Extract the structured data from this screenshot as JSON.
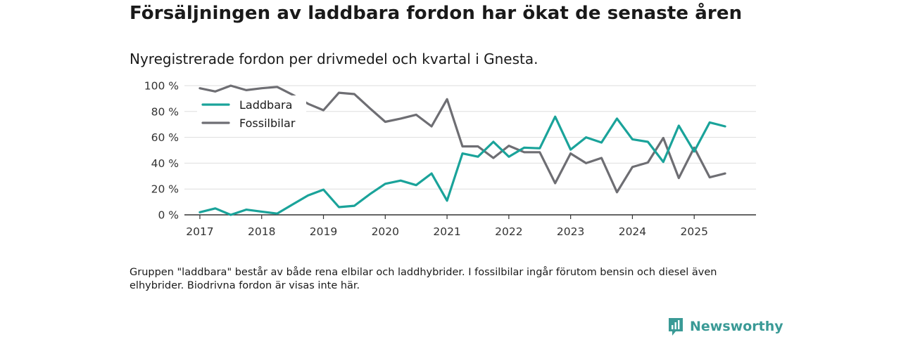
{
  "page": {
    "title": "Försäljningen av laddbara fordon har ökat de senaste åren",
    "subtitle": "Nyregistrerade fordon per drivmedel och kvartal i Gnesta.",
    "note": "Gruppen \"laddbara\" består av både rena elbilar och laddhybrider. I fossilbilar ingår förutom bensin och diesel även elhybrider. Biodrivna fordon är visas inte här.",
    "brand": "Newsworthy"
  },
  "chart_data": {
    "type": "line",
    "title": "Försäljningen av laddbara fordon har ökat de senaste åren",
    "subtitle": "Nyregistrerade fordon per drivmedel och kvartal i Gnesta.",
    "xlabel": "",
    "ylabel": "",
    "ylim": [
      0,
      100
    ],
    "xlim": [
      2016.75,
      2026.0
    ],
    "y_ticks": [
      0,
      20,
      40,
      60,
      80,
      100
    ],
    "y_tick_labels": [
      "0 %",
      "20 %",
      "40 %",
      "60 %",
      "80 %",
      "100 %"
    ],
    "x_ticks": [
      2017,
      2018,
      2019,
      2020,
      2021,
      2022,
      2023,
      2024,
      2025
    ],
    "x_tick_labels": [
      "2017",
      "2018",
      "2019",
      "2020",
      "2021",
      "2022",
      "2023",
      "2024",
      "2025"
    ],
    "grid": true,
    "legend_position": "top-left",
    "x": [
      2017.0,
      2017.25,
      2017.5,
      2017.75,
      2018.0,
      2018.25,
      2018.5,
      2018.75,
      2019.0,
      2019.25,
      2019.5,
      2019.75,
      2020.0,
      2020.25,
      2020.5,
      2020.75,
      2021.0,
      2021.25,
      2021.5,
      2021.75,
      2022.0,
      2022.25,
      2022.5,
      2022.75,
      2023.0,
      2023.25,
      2023.5,
      2023.75,
      2024.0,
      2024.25,
      2024.5,
      2024.75,
      2025.0,
      2025.25,
      2025.5
    ],
    "series": [
      {
        "name": "Laddbara",
        "color": "#1aa39a",
        "values": [
          2,
          5,
          0,
          4,
          2.5,
          1,
          8,
          15,
          19.5,
          6,
          7,
          16,
          24,
          26.5,
          23,
          32,
          11,
          47.5,
          45,
          56.5,
          45,
          52,
          51.5,
          76,
          50.5,
          60,
          56,
          74.5,
          58.5,
          56.5,
          41,
          69,
          49,
          71.5,
          68.5
        ]
      },
      {
        "name": "Fossilbilar",
        "color": "#6e6e73",
        "values": [
          98,
          95.5,
          100,
          96.5,
          98,
          99,
          93,
          86,
          81,
          94.5,
          93.5,
          82.5,
          72,
          74.5,
          77.5,
          68.5,
          89.5,
          53,
          53,
          44,
          53.5,
          48.5,
          48.5,
          24.5,
          47.5,
          40,
          44,
          17.5,
          37,
          40.5,
          59.5,
          28.5,
          52,
          29,
          32
        ]
      }
    ]
  }
}
